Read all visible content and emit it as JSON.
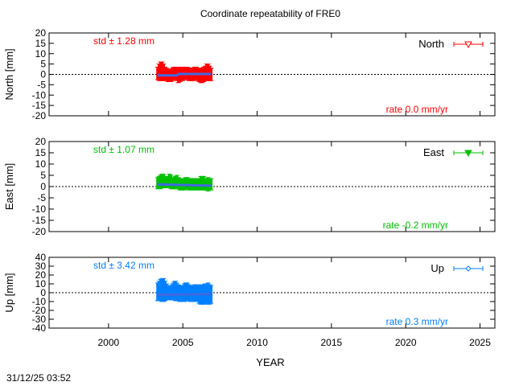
{
  "title": "Coordinate repeatability of FRE0",
  "timestamp": "31/12/25 03:52",
  "chart_data": {
    "type": "scatter",
    "xlabel": "YEAR",
    "xlim": [
      1996,
      2026
    ],
    "xticks": [
      2000,
      2005,
      2010,
      2015,
      2020,
      2025
    ],
    "grid": false,
    "legend_placement": "top-right",
    "panels": [
      {
        "name": "North",
        "ylabel": "North [mm]",
        "ylim": [
          -20,
          20
        ],
        "yticks": [
          -20,
          -15,
          -10,
          -5,
          0,
          5,
          10,
          15,
          20
        ],
        "color": "#ff0000",
        "marker": "triangle-down-open",
        "std_label": "std ± 1.28 mm",
        "rate_label": "rate  0.0 mm/yr",
        "x": [
          2003.3,
          2003.4,
          2003.5,
          2003.6,
          2003.7,
          2003.8,
          2003.9,
          2004.0,
          2004.1,
          2004.2,
          2004.3,
          2004.4,
          2004.5,
          2004.6,
          2004.7,
          2004.8,
          2004.9,
          2005.0,
          2005.1,
          2005.2,
          2005.3,
          2005.4,
          2005.5,
          2005.6,
          2005.7,
          2005.8,
          2005.9,
          2006.0,
          2006.1,
          2006.2,
          2006.3,
          2006.4,
          2006.5,
          2006.6,
          2006.7,
          2006.8,
          2006.9
        ],
        "y": [
          0.5,
          1.0,
          1.5,
          1.5,
          1.0,
          0.5,
          0.0,
          -0.5,
          -0.5,
          -0.5,
          0.0,
          0.5,
          0.5,
          0.0,
          -0.5,
          0.0,
          0.0,
          0.0,
          0.5,
          0.5,
          0.5,
          0.0,
          0.0,
          0.0,
          0.0,
          0.5,
          0.5,
          0.0,
          -0.5,
          -0.5,
          -0.5,
          0.0,
          0.5,
          1.0,
          1.0,
          0.5,
          0.0
        ],
        "err": [
          3.0,
          4.0,
          4.5,
          4.5,
          4.0,
          3.0,
          3.0,
          3.0,
          3.0,
          3.0,
          3.0,
          3.0,
          3.0,
          3.0,
          3.5,
          3.5,
          3.0,
          3.0,
          3.0,
          3.0,
          3.0,
          3.0,
          3.0,
          3.0,
          3.0,
          3.0,
          3.0,
          3.0,
          3.0,
          3.5,
          3.5,
          3.5,
          3.5,
          4.0,
          4.0,
          3.5,
          3.0
        ],
        "trend": {
          "x": [
            2003.3,
            2004.6,
            2004.7,
            2006.9
          ],
          "y": [
            -0.5,
            -0.5,
            0.2,
            0.2
          ]
        }
      },
      {
        "name": "East",
        "ylabel": "East [mm]",
        "ylim": [
          -20,
          20
        ],
        "yticks": [
          -20,
          -15,
          -10,
          -5,
          0,
          5,
          10,
          15,
          20
        ],
        "color": "#00c000",
        "marker": "triangle-down-filled",
        "std_label": "std ± 1.07 mm",
        "rate_label": "rate -0.2 mm/yr",
        "x": [
          2003.3,
          2003.4,
          2003.5,
          2003.6,
          2003.7,
          2003.8,
          2003.9,
          2004.0,
          2004.1,
          2004.2,
          2004.3,
          2004.4,
          2004.5,
          2004.6,
          2004.7,
          2004.8,
          2004.9,
          2005.0,
          2005.1,
          2005.2,
          2005.3,
          2005.4,
          2005.5,
          2005.6,
          2005.7,
          2005.8,
          2005.9,
          2006.0,
          2006.1,
          2006.2,
          2006.3,
          2006.4,
          2006.5,
          2006.6,
          2006.7,
          2006.8,
          2006.9
        ],
        "y": [
          1.5,
          2.0,
          2.0,
          2.5,
          2.5,
          2.0,
          2.0,
          2.0,
          2.5,
          2.0,
          1.5,
          1.5,
          2.0,
          2.0,
          1.5,
          1.0,
          1.0,
          1.0,
          1.0,
          1.5,
          1.5,
          1.0,
          1.0,
          1.0,
          1.0,
          1.0,
          1.0,
          1.0,
          1.0,
          1.5,
          1.5,
          1.5,
          1.0,
          1.0,
          1.0,
          1.0,
          1.0
        ],
        "err": [
          2.5,
          2.5,
          3.0,
          3.0,
          3.0,
          2.5,
          2.5,
          2.5,
          3.0,
          3.0,
          2.5,
          2.5,
          2.5,
          3.0,
          2.5,
          2.5,
          2.5,
          2.5,
          2.5,
          2.5,
          2.5,
          2.5,
          2.5,
          2.5,
          2.5,
          2.5,
          2.5,
          2.5,
          2.5,
          3.0,
          3.0,
          3.0,
          2.5,
          2.5,
          3.0,
          2.5,
          2.5
        ],
        "trend": {
          "x": [
            2003.3,
            2006.9
          ],
          "y": [
            1.0,
            0.4
          ]
        }
      },
      {
        "name": "Up",
        "ylabel": "Up [mm]",
        "ylim": [
          -40,
          40
        ],
        "yticks": [
          -40,
          -30,
          -20,
          -10,
          0,
          10,
          20,
          30,
          40
        ],
        "color": "#0080ff",
        "marker": "diamond-open",
        "std_label": "std ± 3.42 mm",
        "rate_label": "rate  0.3 mm/yr",
        "x": [
          2003.3,
          2003.4,
          2003.5,
          2003.6,
          2003.7,
          2003.8,
          2003.9,
          2004.0,
          2004.1,
          2004.2,
          2004.3,
          2004.4,
          2004.5,
          2004.6,
          2004.7,
          2004.8,
          2004.9,
          2005.0,
          2005.1,
          2005.2,
          2005.3,
          2005.4,
          2005.5,
          2005.6,
          2005.7,
          2005.8,
          2005.9,
          2006.0,
          2006.1,
          2006.2,
          2006.3,
          2006.4,
          2006.5,
          2006.6,
          2006.7,
          2006.8,
          2006.9
        ],
        "y": [
          1,
          2,
          3,
          3,
          3,
          2,
          1,
          0,
          0,
          0,
          1,
          2,
          2,
          1,
          0,
          -1,
          -1,
          -1,
          0,
          1,
          1,
          0,
          -1,
          -1,
          -1,
          0,
          0,
          -1,
          -2,
          -2,
          -2,
          -2,
          -1,
          -1,
          -1,
          -2,
          -2
        ],
        "err": [
          10,
          11,
          12,
          13,
          13,
          11,
          9,
          8,
          8,
          8,
          9,
          10,
          11,
          10,
          9,
          9,
          9,
          9,
          10,
          10,
          10,
          9,
          9,
          9,
          9,
          9,
          9,
          9,
          10,
          11,
          11,
          11,
          11,
          11,
          12,
          11,
          10
        ],
        "trend": {
          "x": [
            2003.3,
            2006.9
          ],
          "y": [
            -2.5,
            -1.5
          ]
        }
      }
    ]
  }
}
